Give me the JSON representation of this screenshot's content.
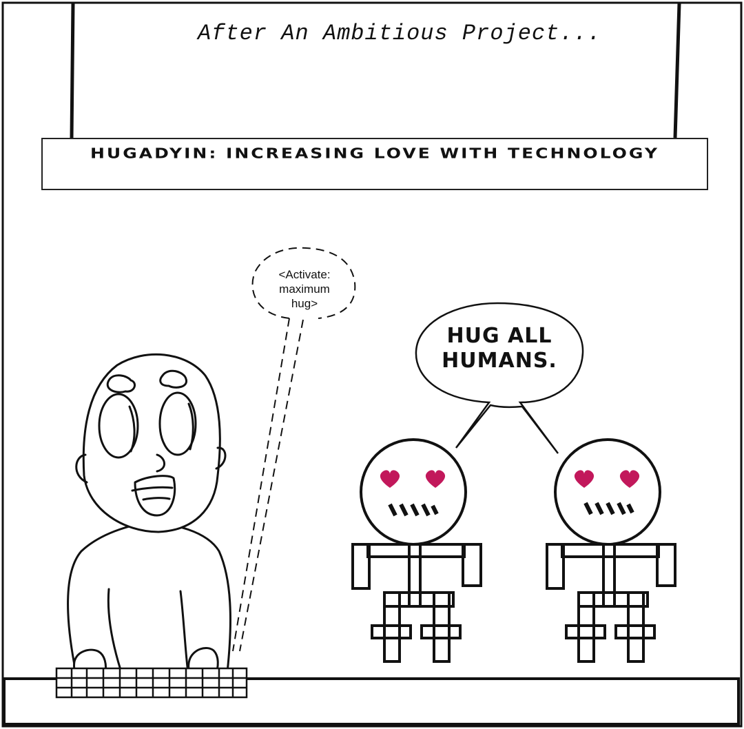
{
  "panel": {
    "caption": "After An Ambitious Project...",
    "banner": "HUGADYIN: INCREASING LOVE WITH TECHNOLOGY"
  },
  "dialogue": {
    "command_bubble": [
      "<Activate:",
      "maximum",
      "hug>"
    ],
    "robot_bubble": [
      "HUG ALL",
      "HUMANS."
    ]
  },
  "colors": {
    "ink": "#111111",
    "heart": "#c2185b"
  }
}
